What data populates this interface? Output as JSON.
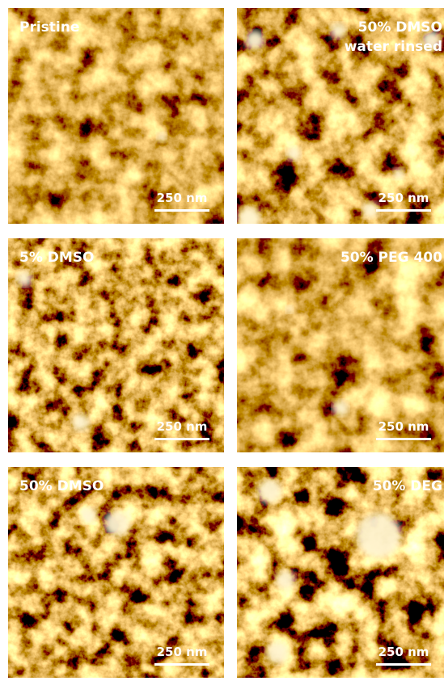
{
  "panels": [
    {
      "label": [
        "Pristine"
      ],
      "scale_bar": "250 nm"
    },
    {
      "label": [
        "50% DMSO",
        "water rinsed"
      ],
      "scale_bar": "250 nm"
    },
    {
      "label": [
        "5% DMSO"
      ],
      "scale_bar": "250 nm"
    },
    {
      "label": [
        "50% PEG 400"
      ],
      "scale_bar": "250 nm"
    },
    {
      "label": [
        "50% DMSO"
      ],
      "scale_bar": "250 nm"
    },
    {
      "label": [
        "50% DEG"
      ],
      "scale_bar": "250 nm"
    }
  ]
}
